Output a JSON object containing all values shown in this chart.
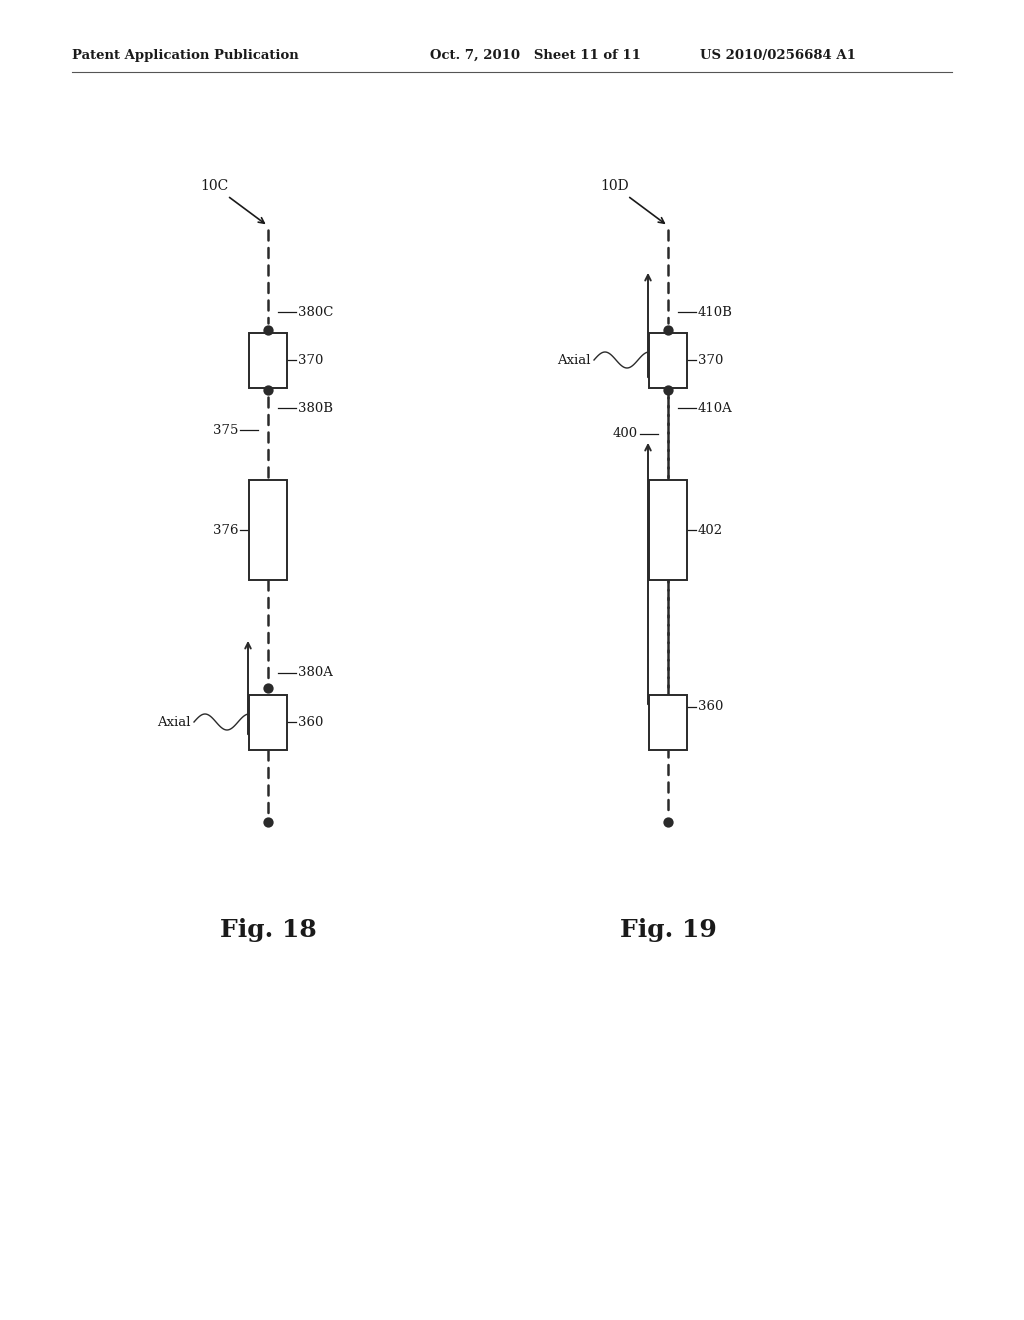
{
  "bg_color": "#ffffff",
  "header_left": "Patent Application Publication",
  "header_mid": "Oct. 7, 2010   Sheet 11 of 11",
  "header_right": "US 2010/0256684 A1",
  "fig18_label": "Fig. 18",
  "fig19_label": "Fig. 19",
  "wire_color": "#2a2a2a",
  "dot_color": "#2a2a2a",
  "text_color": "#1a1a1a",
  "box_edge_color": "#2a2a2a"
}
